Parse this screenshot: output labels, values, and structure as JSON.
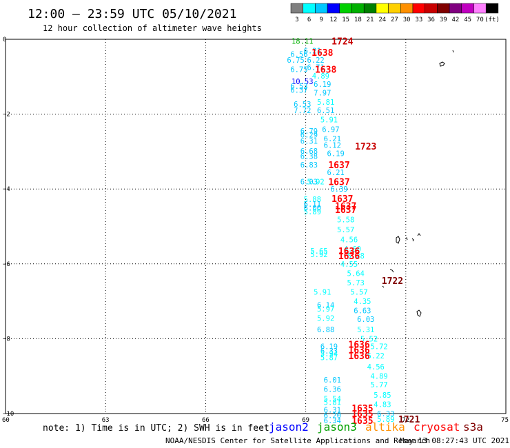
{
  "header": {
    "title": "12:00 — 23:59 UTC 05/10/2021",
    "subtitle": "12 hour collection of altimeter wave heights"
  },
  "colorbar": {
    "colors": [
      "#808080",
      "#00ffff",
      "#00c8ff",
      "#0000ff",
      "#00d000",
      "#00b000",
      "#008000",
      "#ffff00",
      "#ffd000",
      "#ff9000",
      "#ff0000",
      "#c80000",
      "#800000",
      "#800080",
      "#c000c0",
      "#ff80ff",
      "#000000"
    ],
    "labels": [
      "3",
      "6",
      "9",
      "12",
      "15",
      "18",
      "21",
      "24",
      "27",
      "30",
      "33",
      "36",
      "39",
      "42",
      "45",
      "70",
      "(ft)"
    ]
  },
  "chart_data": {
    "type": "scatter",
    "xlim": [
      60,
      75
    ],
    "ylim": [
      -10,
      0
    ],
    "x_ticks": [
      "60",
      "63",
      "66",
      "69",
      "72",
      "75"
    ],
    "y_ticks": [
      "0",
      "−2",
      "−4",
      "−6",
      "−8",
      "−10"
    ],
    "grid": true,
    "wave_heights": [
      {
        "x": 68.9,
        "y": -0.05,
        "v": "18.11",
        "c": "#00b000"
      },
      {
        "x": 69.2,
        "y": -0.3,
        "v": "6.21",
        "c": "#00c8ff"
      },
      {
        "x": 68.8,
        "y": -0.4,
        "v": "6.56",
        "c": "#00c8ff"
      },
      {
        "x": 68.7,
        "y": -0.55,
        "v": "6.75",
        "c": "#00c8ff"
      },
      {
        "x": 69.3,
        "y": -0.55,
        "v": "6.22",
        "c": "#00c8ff"
      },
      {
        "x": 68.8,
        "y": -0.8,
        "v": "6.75",
        "c": "#00c8ff"
      },
      {
        "x": 69.3,
        "y": -0.75,
        "v": "6.71",
        "c": "#00c8ff"
      },
      {
        "x": 69.45,
        "y": -0.98,
        "v": "4.89",
        "c": "#00ffff"
      },
      {
        "x": 68.9,
        "y": -1.12,
        "v": "10.53",
        "c": "#0000ff"
      },
      {
        "x": 68.8,
        "y": -1.25,
        "v": "6.53",
        "c": "#00c8ff"
      },
      {
        "x": 69.5,
        "y": -1.2,
        "v": "6.19",
        "c": "#00c8ff"
      },
      {
        "x": 68.8,
        "y": -1.35,
        "v": "6.37",
        "c": "#00c8ff"
      },
      {
        "x": 69.5,
        "y": -1.43,
        "v": "7.97",
        "c": "#00c8ff"
      },
      {
        "x": 69.6,
        "y": -1.68,
        "v": "5.81",
        "c": "#00ffff"
      },
      {
        "x": 68.9,
        "y": -1.73,
        "v": "6.53",
        "c": "#00c8ff"
      },
      {
        "x": 68.9,
        "y": -1.9,
        "v": "7.72",
        "c": "#00c8ff"
      },
      {
        "x": 69.6,
        "y": -1.9,
        "v": "6.51",
        "c": "#00c8ff"
      },
      {
        "x": 69.7,
        "y": -2.15,
        "v": "5.91",
        "c": "#00ffff"
      },
      {
        "x": 69.75,
        "y": -2.4,
        "v": "6.97",
        "c": "#00c8ff"
      },
      {
        "x": 69.1,
        "y": -2.45,
        "v": "6.79",
        "c": "#00c8ff"
      },
      {
        "x": 69.1,
        "y": -2.55,
        "v": "6.29",
        "c": "#00c8ff"
      },
      {
        "x": 69.8,
        "y": -2.65,
        "v": "6.21",
        "c": "#00c8ff"
      },
      {
        "x": 69.1,
        "y": -2.72,
        "v": "6.31",
        "c": "#00c8ff"
      },
      {
        "x": 69.8,
        "y": -2.83,
        "v": "6.12",
        "c": "#00c8ff"
      },
      {
        "x": 69.1,
        "y": -2.98,
        "v": "6.68",
        "c": "#00c8ff"
      },
      {
        "x": 69.1,
        "y": -3.12,
        "v": "6.38",
        "c": "#00c8ff"
      },
      {
        "x": 69.9,
        "y": -3.05,
        "v": "6.19",
        "c": "#00c8ff"
      },
      {
        "x": 69.1,
        "y": -3.35,
        "v": "6.83",
        "c": "#00c8ff"
      },
      {
        "x": 69.9,
        "y": -3.55,
        "v": "6.21",
        "c": "#00c8ff"
      },
      {
        "x": 69.1,
        "y": -3.8,
        "v": "6.03",
        "c": "#00c8ff"
      },
      {
        "x": 69.3,
        "y": -3.8,
        "v": "5.92",
        "c": "#00ffff"
      },
      {
        "x": 70.0,
        "y": -4.0,
        "v": "6.39",
        "c": "#00c8ff"
      },
      {
        "x": 69.2,
        "y": -4.27,
        "v": "5.88",
        "c": "#00ffff"
      },
      {
        "x": 69.2,
        "y": -4.4,
        "v": "6.11",
        "c": "#00c8ff"
      },
      {
        "x": 69.2,
        "y": -4.5,
        "v": "6.00",
        "c": "#00c8ff"
      },
      {
        "x": 69.2,
        "y": -4.6,
        "v": "5.89",
        "c": "#00ffff"
      },
      {
        "x": 70.2,
        "y": -4.82,
        "v": "5.58",
        "c": "#00ffff"
      },
      {
        "x": 70.2,
        "y": -5.08,
        "v": "5.57",
        "c": "#00ffff"
      },
      {
        "x": 70.3,
        "y": -5.35,
        "v": "4.56",
        "c": "#00ffff"
      },
      {
        "x": 70.4,
        "y": -5.6,
        "v": "4.60",
        "c": "#00ffff"
      },
      {
        "x": 69.4,
        "y": -5.65,
        "v": "5.65",
        "c": "#00ffff"
      },
      {
        "x": 69.4,
        "y": -5.75,
        "v": "5.92",
        "c": "#00ffff"
      },
      {
        "x": 70.5,
        "y": -5.78,
        "v": "5.28",
        "c": "#00ffff"
      },
      {
        "x": 70.3,
        "y": -6.0,
        "v": "4.55",
        "c": "#00ffff"
      },
      {
        "x": 70.5,
        "y": -6.25,
        "v": "5.64",
        "c": "#00ffff"
      },
      {
        "x": 70.5,
        "y": -6.5,
        "v": "5.73",
        "c": "#00ffff"
      },
      {
        "x": 69.5,
        "y": -6.75,
        "v": "5.91",
        "c": "#00ffff"
      },
      {
        "x": 70.6,
        "y": -6.75,
        "v": "5.57",
        "c": "#00ffff"
      },
      {
        "x": 70.7,
        "y": -7.0,
        "v": "4.35",
        "c": "#00ffff"
      },
      {
        "x": 69.6,
        "y": -7.1,
        "v": "6.14",
        "c": "#00c8ff"
      },
      {
        "x": 69.6,
        "y": -7.2,
        "v": "5.97",
        "c": "#00ffff"
      },
      {
        "x": 70.7,
        "y": -7.25,
        "v": "6.63",
        "c": "#00c8ff"
      },
      {
        "x": 69.6,
        "y": -7.45,
        "v": "5.92",
        "c": "#00ffff"
      },
      {
        "x": 70.8,
        "y": -7.48,
        "v": "6.03",
        "c": "#00c8ff"
      },
      {
        "x": 70.8,
        "y": -7.75,
        "v": "5.31",
        "c": "#00ffff"
      },
      {
        "x": 69.6,
        "y": -7.75,
        "v": "6.88",
        "c": "#00c8ff"
      },
      {
        "x": 70.9,
        "y": -8.0,
        "v": "5.52",
        "c": "#00ffff"
      },
      {
        "x": 69.7,
        "y": -8.2,
        "v": "6.19",
        "c": "#00c8ff"
      },
      {
        "x": 71.2,
        "y": -8.2,
        "v": "5.72",
        "c": "#00ffff"
      },
      {
        "x": 69.7,
        "y": -8.32,
        "v": "6.33",
        "c": "#00c8ff"
      },
      {
        "x": 69.7,
        "y": -8.4,
        "v": "5.94",
        "c": "#00ffff"
      },
      {
        "x": 69.7,
        "y": -8.5,
        "v": "5.87",
        "c": "#00ffff"
      },
      {
        "x": 71.1,
        "y": -8.45,
        "v": "5.22",
        "c": "#00ffff"
      },
      {
        "x": 71.1,
        "y": -8.75,
        "v": "4.56",
        "c": "#00ffff"
      },
      {
        "x": 71.2,
        "y": -9.0,
        "v": "4.89",
        "c": "#00ffff"
      },
      {
        "x": 69.8,
        "y": -9.1,
        "v": "6.01",
        "c": "#00c8ff"
      },
      {
        "x": 71.2,
        "y": -9.23,
        "v": "5.77",
        "c": "#00ffff"
      },
      {
        "x": 69.8,
        "y": -9.35,
        "v": "6.36",
        "c": "#00c8ff"
      },
      {
        "x": 71.3,
        "y": -9.5,
        "v": "5.85",
        "c": "#00ffff"
      },
      {
        "x": 69.8,
        "y": -9.6,
        "v": "5.54",
        "c": "#00ffff"
      },
      {
        "x": 69.8,
        "y": -9.7,
        "v": "5.81",
        "c": "#00ffff"
      },
      {
        "x": 71.3,
        "y": -9.75,
        "v": "4.83",
        "c": "#00ffff"
      },
      {
        "x": 69.8,
        "y": -9.9,
        "v": "6.31",
        "c": "#00c8ff"
      },
      {
        "x": 71.4,
        "y": -10.0,
        "v": "6.33",
        "c": "#00c8ff"
      },
      {
        "x": 69.8,
        "y": -10.05,
        "v": "6.20",
        "c": "#00c8ff"
      },
      {
        "x": 71.4,
        "y": -10.15,
        "v": "5.89",
        "c": "#00ffff"
      },
      {
        "x": 69.8,
        "y": -10.18,
        "v": "6.34",
        "c": "#00c8ff"
      }
    ],
    "pass_times": [
      {
        "x": 70.1,
        "y": -0.05,
        "t": "1724",
        "c": "#c80000"
      },
      {
        "x": 69.5,
        "y": -0.35,
        "t": "1638",
        "c": "#ff0000"
      },
      {
        "x": 69.6,
        "y": -0.8,
        "t": "1638",
        "c": "#ff0000"
      },
      {
        "x": 70.8,
        "y": -2.85,
        "t": "1723",
        "c": "#c80000"
      },
      {
        "x": 70.0,
        "y": -3.35,
        "t": "1637",
        "c": "#ff0000"
      },
      {
        "x": 70.0,
        "y": -3.8,
        "t": "1637",
        "c": "#ff0000"
      },
      {
        "x": 70.1,
        "y": -4.25,
        "t": "1637",
        "c": "#ff0000"
      },
      {
        "x": 70.2,
        "y": -4.45,
        "t": "1637",
        "c": "#ff0000"
      },
      {
        "x": 70.2,
        "y": -4.55,
        "t": "1637",
        "c": "#ff0000"
      },
      {
        "x": 70.3,
        "y": -5.65,
        "t": "1636",
        "c": "#ff0000"
      },
      {
        "x": 70.3,
        "y": -5.78,
        "t": "1636",
        "c": "#ff0000"
      },
      {
        "x": 71.6,
        "y": -6.45,
        "t": "1722",
        "c": "#800000"
      },
      {
        "x": 70.6,
        "y": -8.15,
        "t": "1636",
        "c": "#ff0000"
      },
      {
        "x": 70.6,
        "y": -8.3,
        "t": "1636",
        "c": "#ff0000"
      },
      {
        "x": 70.6,
        "y": -8.45,
        "t": "1636",
        "c": "#ff0000"
      },
      {
        "x": 70.7,
        "y": -9.85,
        "t": "1635",
        "c": "#ff0000"
      },
      {
        "x": 70.7,
        "y": -10.0,
        "t": "1635",
        "c": "#ff0000"
      },
      {
        "x": 70.7,
        "y": -10.18,
        "t": "1635",
        "c": "#ff0000"
      },
      {
        "x": 72.1,
        "y": -10.15,
        "t": "1721",
        "c": "#800000"
      }
    ]
  },
  "footer": {
    "note": "note: 1) Time is in UTC; 2) SWH is in feet",
    "legend": [
      {
        "name": "jason2",
        "color": "#0000ff"
      },
      {
        "name": "jason3",
        "color": "#00a000"
      },
      {
        "name": "altika",
        "color": "#ff9000"
      },
      {
        "name": "cryosat",
        "color": "#ff0000"
      },
      {
        "name": "s3a",
        "color": "#800000"
      }
    ],
    "credit": "NOAA/NESDIS Center for Satellite Applications and Research",
    "timestamp": "May 13 08:27:43 UTC 2021"
  }
}
